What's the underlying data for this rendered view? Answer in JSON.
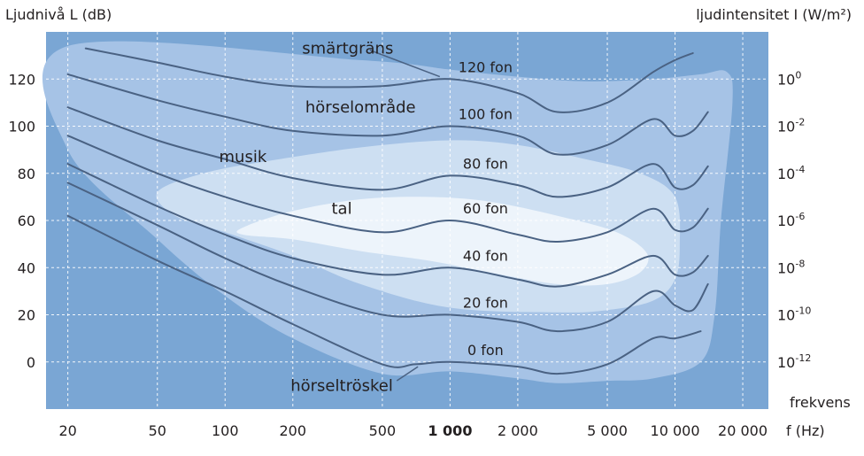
{
  "chart_data": {
    "type": "line",
    "y_axis_label": "Ljudnivå L (dB)",
    "y2_axis_label": "ljudintensitet I (W/m²)",
    "x_axis_label": "frekvens",
    "x_unit_label": "f (Hz)",
    "x_scale": "log",
    "xlim": [
      16,
      26000
    ],
    "ylim": [
      -20,
      140
    ],
    "x_ticks": [
      20,
      50,
      100,
      200,
      500,
      1000,
      2000,
      5000,
      10000,
      20000
    ],
    "x_tick_labels": [
      "20",
      "50",
      "100",
      "200",
      "500",
      "1 000",
      "2 000",
      "5 000",
      "10 000",
      "20 000"
    ],
    "y_ticks": [
      0,
      20,
      40,
      60,
      80,
      100,
      120
    ],
    "y_tick_labels": [
      "0",
      "20",
      "40",
      "60",
      "80",
      "100",
      "120"
    ],
    "y2_ticks": [
      {
        "value": 0,
        "base": "10",
        "exp": "-12"
      },
      {
        "value": 20,
        "base": "10",
        "exp": "-10"
      },
      {
        "value": 40,
        "base": "10",
        "exp": "-8"
      },
      {
        "value": 60,
        "base": "10",
        "exp": "-6"
      },
      {
        "value": 80,
        "base": "10",
        "exp": "-4"
      },
      {
        "value": 100,
        "base": "10",
        "exp": "-2"
      },
      {
        "value": 120,
        "base": "10",
        "exp": "0"
      }
    ],
    "grid": true,
    "colors": {
      "background": "#7aa6d4",
      "hearing_area": "#a6c3e6",
      "music_area": "#cddff2",
      "speech_area": "#edf4fb",
      "curve": "#4a6283",
      "text": "#231f20"
    },
    "series": [
      {
        "name": "0 fon",
        "x": [
          20,
          50,
          100,
          200,
          500,
          700,
          1000,
          2000,
          3000,
          5000,
          8000,
          10000,
          13000
        ],
        "y": [
          62,
          43,
          30,
          16,
          -1,
          -1,
          0,
          -2,
          -5,
          -1,
          10,
          10,
          13
        ]
      },
      {
        "name": "20 fon",
        "x": [
          20,
          50,
          100,
          200,
          500,
          1000,
          2000,
          3000,
          5000,
          8000,
          10000,
          12000,
          14000
        ],
        "y": [
          76,
          58,
          44,
          32,
          20,
          20,
          17,
          13,
          17,
          30,
          24,
          22,
          33
        ]
      },
      {
        "name": "40 fon",
        "x": [
          20,
          50,
          100,
          200,
          500,
          1000,
          2000,
          3000,
          5000,
          8000,
          10000,
          12000,
          14000
        ],
        "y": [
          84,
          66,
          54,
          44,
          37,
          40,
          35,
          32,
          37,
          45,
          37,
          38,
          45
        ]
      },
      {
        "name": "60 fon",
        "x": [
          20,
          50,
          100,
          200,
          500,
          1000,
          2000,
          3000,
          5000,
          8000,
          10000,
          12000,
          14000
        ],
        "y": [
          96,
          80,
          70,
          62,
          55,
          60,
          54,
          51,
          55,
          65,
          56,
          57,
          65
        ]
      },
      {
        "name": "80 fon",
        "x": [
          20,
          50,
          100,
          200,
          500,
          1000,
          2000,
          3000,
          5000,
          8000,
          10000,
          12000,
          14000
        ],
        "y": [
          108,
          94,
          86,
          78,
          73,
          79,
          75,
          70,
          74,
          84,
          74,
          75,
          83
        ]
      },
      {
        "name": "100 fon",
        "x": [
          20,
          50,
          100,
          200,
          500,
          1000,
          2000,
          3000,
          5000,
          8000,
          10000,
          12000,
          14000
        ],
        "y": [
          122,
          111,
          104,
          98,
          96,
          100,
          96,
          88,
          92,
          103,
          96,
          98,
          106
        ]
      },
      {
        "name": "120 fon",
        "x": [
          24,
          50,
          100,
          200,
          500,
          1000,
          2000,
          3000,
          5000,
          8000,
          10000,
          12000
        ],
        "y": [
          133,
          127,
          121,
          117,
          117,
          120,
          114,
          106,
          110,
          123,
          128,
          131
        ]
      }
    ],
    "annotations": {
      "pain_threshold": "smärtgräns",
      "hearing_area": "hörselområde",
      "music": "musik",
      "speech": "tal",
      "hearing_threshold": "hörseltröskel"
    },
    "regions": {
      "hearing_area": [
        [
          20,
          134
        ],
        [
          400,
          128
        ],
        [
          1000,
          124
        ],
        [
          2000,
          121
        ],
        [
          4000,
          119
        ],
        [
          8000,
          120
        ],
        [
          13000,
          122
        ],
        [
          17000,
          123
        ],
        [
          18000,
          110
        ],
        [
          16000,
          60
        ],
        [
          15000,
          20
        ],
        [
          13000,
          0
        ],
        [
          8000,
          -7
        ],
        [
          5000,
          -8
        ],
        [
          3000,
          -9
        ],
        [
          2000,
          -7
        ],
        [
          1000,
          -4
        ],
        [
          500,
          -5
        ],
        [
          200,
          10
        ],
        [
          100,
          28
        ],
        [
          50,
          52
        ],
        [
          20,
          90
        ]
      ],
      "music_area": [
        [
          50,
          72
        ],
        [
          80,
          80
        ],
        [
          150,
          85
        ],
        [
          400,
          91
        ],
        [
          1000,
          94
        ],
        [
          2000,
          92
        ],
        [
          4000,
          86
        ],
        [
          7000,
          80
        ],
        [
          10000,
          70
        ],
        [
          10500,
          50
        ],
        [
          10000,
          35
        ],
        [
          8000,
          26
        ],
        [
          5000,
          22
        ],
        [
          3000,
          21
        ],
        [
          1000,
          23
        ],
        [
          400,
          33
        ],
        [
          200,
          45
        ],
        [
          100,
          55
        ],
        [
          60,
          62
        ]
      ],
      "speech_area": [
        [
          120,
          57
        ],
        [
          200,
          64
        ],
        [
          400,
          69
        ],
        [
          800,
          70
        ],
        [
          1500,
          68
        ],
        [
          3000,
          62
        ],
        [
          5500,
          55
        ],
        [
          7500,
          46
        ],
        [
          7000,
          38
        ],
        [
          5000,
          33
        ],
        [
          3000,
          33
        ],
        [
          1500,
          38
        ],
        [
          800,
          43
        ],
        [
          400,
          47
        ],
        [
          200,
          52
        ],
        [
          120,
          54
        ]
      ]
    }
  }
}
